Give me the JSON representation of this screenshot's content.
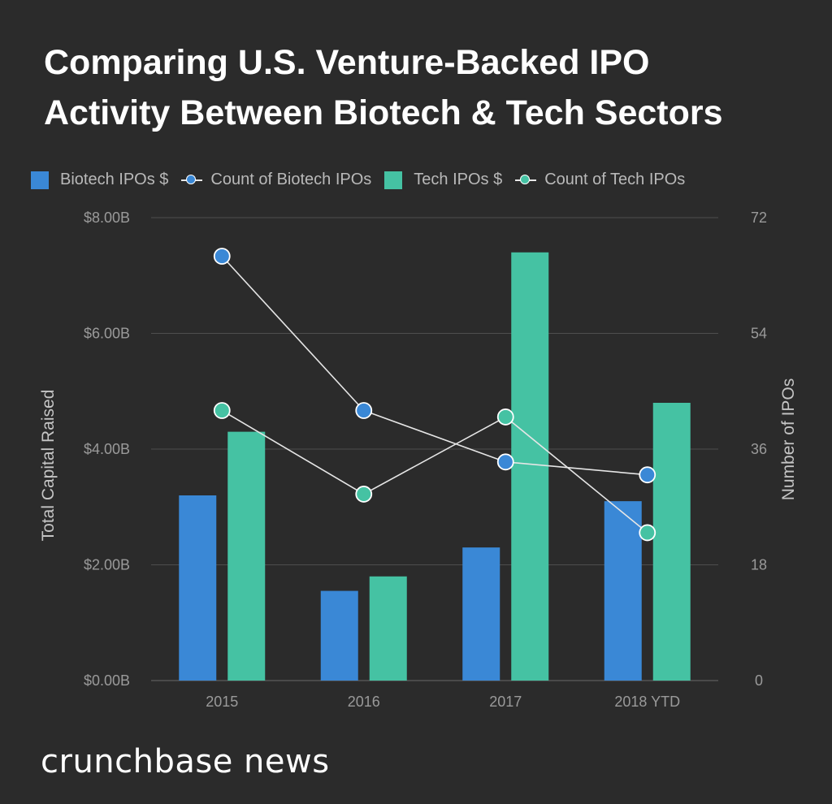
{
  "title_line1": "Comparing U.S. Venture-Backed IPO",
  "title_line2": "Activity Between Biotech & Tech Sectors",
  "brand": "crunchbase news",
  "chart_data": {
    "type": "bar",
    "title": "Comparing U.S. Venture-Backed IPO Activity Between Biotech & Tech Sectors",
    "categories": [
      "2015",
      "2016",
      "2017",
      "2018 YTD"
    ],
    "ylabel": "Total Capital Raised",
    "y2label": "Number of IPOs",
    "ylim": [
      0,
      8
    ],
    "y2lim": [
      0,
      72
    ],
    "yticks": [
      "$0.00B",
      "$2.00B",
      "$4.00B",
      "$6.00B",
      "$8.00B"
    ],
    "y2ticks": [
      "0",
      "18",
      "36",
      "54",
      "72"
    ],
    "bar_series": [
      {
        "name": "Biotech IPOs $",
        "color": "#3a88d6",
        "values": [
          3.2,
          1.55,
          2.3,
          3.1
        ]
      },
      {
        "name": "Tech IPOs $",
        "color": "#45c2a3",
        "values": [
          4.3,
          1.8,
          7.4,
          4.8
        ]
      }
    ],
    "line_series": [
      {
        "name": "Count of Biotech IPOs",
        "color": "#3a88d6",
        "values": [
          66,
          42,
          34,
          32
        ]
      },
      {
        "name": "Count of Tech IPOs",
        "color": "#45c2a3",
        "values": [
          42,
          29,
          41,
          23
        ]
      }
    ],
    "legend": [
      "Biotech IPOs $",
      "Count of Biotech IPOs",
      "Tech IPOs $",
      "Count of Tech IPOs"
    ]
  }
}
